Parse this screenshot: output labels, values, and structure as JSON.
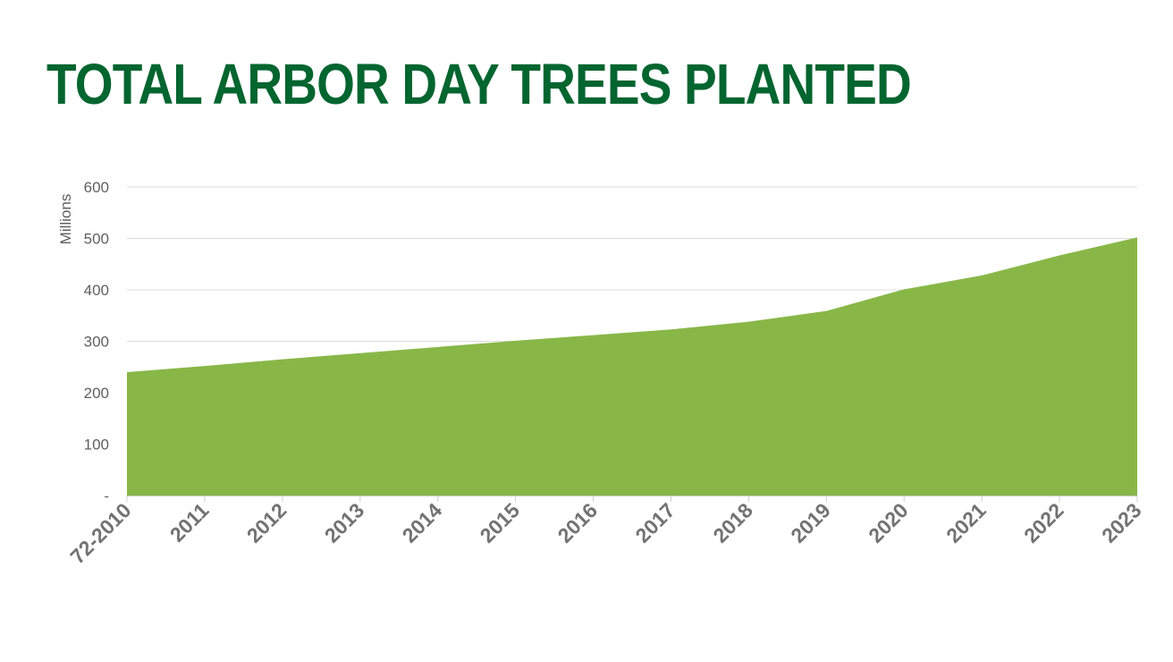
{
  "chart_data": {
    "type": "area",
    "title": "TOTAL ARBOR DAY TREES PLANTED",
    "ylabel": "Millions",
    "xlabel": "",
    "categories": [
      "72-2010",
      "2011",
      "2012",
      "2013",
      "2014",
      "2015",
      "2016",
      "2017",
      "2018",
      "2019",
      "2020",
      "2021",
      "2022",
      "2023"
    ],
    "values": [
      240,
      252,
      265,
      277,
      289,
      301,
      312,
      323,
      338,
      359,
      401,
      428,
      467,
      502
    ],
    "ylim": [
      0,
      600
    ],
    "yticks": [
      0,
      100,
      200,
      300,
      400,
      500,
      600
    ],
    "ytick_labels": [
      "-",
      "100",
      "200",
      "300",
      "400",
      "500",
      "600"
    ],
    "grid": true,
    "legend": "none",
    "fill_color": "#88b748",
    "title_color": "#03652f"
  }
}
